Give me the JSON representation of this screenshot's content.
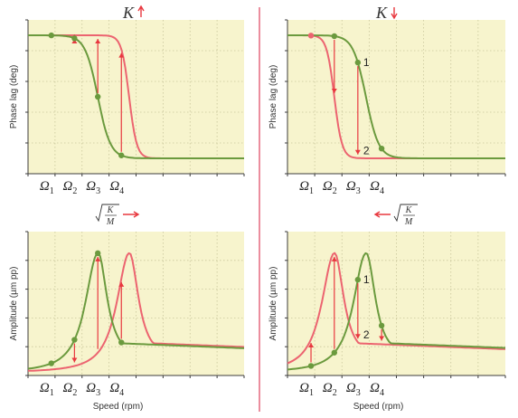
{
  "colors": {
    "red_curve": "#ec6470",
    "green_curve": "#6b9a3e",
    "plot_background": "#f7f4cd",
    "arrow_red": "#e8383f",
    "divider": "#e0506a"
  },
  "headers": {
    "left": {
      "symbol": "K",
      "direction": "up"
    },
    "right": {
      "symbol": "K",
      "direction": "down"
    }
  },
  "middle_labels": {
    "left": {
      "numerator": "K",
      "denominator": "M",
      "arrow": "right"
    },
    "right": {
      "numerator": "K",
      "denominator": "M",
      "arrow": "left"
    }
  },
  "omega_labels": [
    "Ω",
    "Ω",
    "Ω",
    "Ω"
  ],
  "omega_subscripts": [
    "1",
    "2",
    "3",
    "4"
  ],
  "chart_data": [
    {
      "type": "line",
      "panel": "top-left",
      "ylabel": "Phase lag (deg)",
      "xlabel": "",
      "x_range": [
        0,
        1
      ],
      "ylim": [
        0,
        1
      ],
      "x_ticks": [
        0.108,
        0.215,
        0.323,
        0.432
      ],
      "series": [
        {
          "color": "red",
          "curve": "phase",
          "resonance_x": 0.468,
          "width": 0.03,
          "x": [],
          "y": []
        },
        {
          "color": "green",
          "curve": "phase",
          "resonance_x": 0.323,
          "width": 0.05,
          "x": [],
          "y": []
        }
      ],
      "arrow_xs": [
        0.335,
        0.432
      ],
      "arrows": [
        {
          "x": 0.215,
          "direction": "up"
        },
        {
          "x": 0.323,
          "direction": "up"
        },
        {
          "x": 0.432,
          "direction": "up"
        }
      ],
      "markers": [
        {
          "x": 0.108,
          "series": 1
        },
        {
          "x": 0.215,
          "series": 1
        },
        {
          "x": 0.323,
          "series": 1
        },
        {
          "x": 0.432,
          "series": 1
        }
      ],
      "marker_labels": []
    },
    {
      "type": "line",
      "panel": "top-right",
      "ylabel": "Phase lag (deg)",
      "xlabel": "",
      "x_range": [
        0,
        1
      ],
      "ylim": [
        0,
        1
      ],
      "x_ticks": [
        0.108,
        0.215,
        0.323,
        0.432
      ],
      "series": [
        {
          "color": "red",
          "curve": "phase",
          "resonance_x": 0.215,
          "width": 0.03,
          "x": [],
          "y": []
        },
        {
          "color": "green",
          "curve": "phase",
          "resonance_x": 0.36,
          "width": 0.05,
          "x": [],
          "y": []
        }
      ],
      "arrows": [
        {
          "x": 0.215,
          "direction": "down"
        },
        {
          "x": 0.323,
          "direction": "down"
        }
      ],
      "markers": [
        {
          "x": 0.108,
          "series": 0
        },
        {
          "x": 0.215,
          "series": 1
        },
        {
          "x": 0.323,
          "series": 1
        },
        {
          "x": 0.432,
          "series": 1
        }
      ],
      "marker_labels": [
        {
          "x": 0.323,
          "text": "1",
          "series": 1
        },
        {
          "x": 0.323,
          "text": "2",
          "series": 0
        }
      ]
    },
    {
      "type": "line",
      "panel": "bottom-left",
      "ylabel": "Amplitude (µm pp)",
      "xlabel": "Speed (rpm)",
      "x_range": [
        0,
        1
      ],
      "ylim": [
        0,
        1
      ],
      "x_ticks": [
        0.108,
        0.215,
        0.323,
        0.432
      ],
      "series": [
        {
          "color": "red",
          "curve": "amplitude",
          "resonance_x": 0.468,
          "width": 0.075,
          "x": [],
          "y": []
        },
        {
          "color": "green",
          "curve": "amplitude",
          "resonance_x": 0.323,
          "width": 0.075,
          "x": [],
          "y": []
        }
      ],
      "arrows": [
        {
          "x": 0.215,
          "direction": "down"
        },
        {
          "x": 0.323,
          "direction": "up"
        },
        {
          "x": 0.432,
          "direction": "up"
        }
      ],
      "markers": [
        {
          "x": 0.108,
          "series": 1
        },
        {
          "x": 0.215,
          "series": 1
        },
        {
          "x": 0.323,
          "series": 1
        },
        {
          "x": 0.432,
          "series": 1
        }
      ],
      "marker_labels": []
    },
    {
      "type": "line",
      "panel": "bottom-right",
      "ylabel": "Amplitude (µm pp)",
      "xlabel": "Speed (rpm)",
      "x_range": [
        0,
        1
      ],
      "ylim": [
        0,
        1
      ],
      "x_ticks": [
        0.108,
        0.215,
        0.323,
        0.432
      ],
      "series": [
        {
          "color": "red",
          "curve": "amplitude",
          "resonance_x": 0.215,
          "width": 0.075,
          "x": [],
          "y": []
        },
        {
          "color": "green",
          "curve": "amplitude",
          "resonance_x": 0.36,
          "width": 0.075,
          "x": [],
          "y": []
        }
      ],
      "arrows": [
        {
          "x": 0.108,
          "direction": "up"
        },
        {
          "x": 0.215,
          "direction": "up"
        },
        {
          "x": 0.323,
          "direction": "down"
        },
        {
          "x": 0.432,
          "direction": "down"
        }
      ],
      "markers": [
        {
          "x": 0.108,
          "series": 1
        },
        {
          "x": 0.215,
          "series": 1
        },
        {
          "x": 0.323,
          "series": 1
        },
        {
          "x": 0.432,
          "series": 1
        }
      ],
      "marker_labels": [
        {
          "x": 0.323,
          "text": "1",
          "series": 1
        },
        {
          "x": 0.323,
          "text": "2",
          "series": 0
        }
      ]
    }
  ]
}
